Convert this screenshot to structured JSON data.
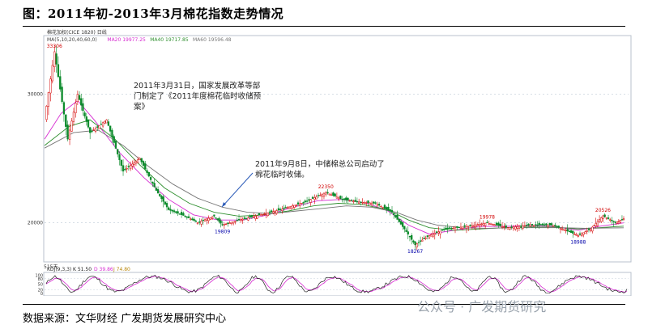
{
  "title": "图：2011年初-2013年3月棉花指数走势情况",
  "source": "数据来源：文华财经  广发期货发展研究中心",
  "watermark": "公众号 · 广发期货研究",
  "chart_data": {
    "type": "line",
    "header_label": "棉花加权(CICE 1820)  日线",
    "ma_legend": [
      {
        "label": "MA(5,10,20,40,60,0)",
        "color": "#444444"
      },
      {
        "label": "MA20 19977.25",
        "color": "#d62ad1"
      },
      {
        "label": "MA40 19717.85",
        "color": "#2f8f2f"
      },
      {
        "label": "MA60 19596.48",
        "color": "#777777"
      }
    ],
    "y_ticks": [
      30000,
      20000
    ],
    "ylim": [
      17000,
      34500
    ],
    "price_path": [
      [
        0,
        28000
      ],
      [
        12,
        33306
      ],
      [
        28,
        26500
      ],
      [
        40,
        30000
      ],
      [
        55,
        27000
      ],
      [
        75,
        28000
      ],
      [
        95,
        24000
      ],
      [
        115,
        25000
      ],
      [
        135,
        22500
      ],
      [
        150,
        21000
      ],
      [
        170,
        20500
      ],
      [
        185,
        20000
      ],
      [
        205,
        20500
      ],
      [
        215,
        19809
      ],
      [
        235,
        20200
      ],
      [
        255,
        20500
      ],
      [
        285,
        21000
      ],
      [
        315,
        21600
      ],
      [
        340,
        22350
      ],
      [
        360,
        21800
      ],
      [
        380,
        21600
      ],
      [
        400,
        21500
      ],
      [
        420,
        20800
      ],
      [
        435,
        19500
      ],
      [
        448,
        18267
      ],
      [
        465,
        19000
      ],
      [
        485,
        19500
      ],
      [
        510,
        19700
      ],
      [
        535,
        19978
      ],
      [
        560,
        19600
      ],
      [
        585,
        19800
      ],
      [
        615,
        19800
      ],
      [
        645,
        18988
      ],
      [
        660,
        19500
      ],
      [
        675,
        20526
      ],
      [
        690,
        20000
      ],
      [
        700,
        20300
      ]
    ],
    "ma_lines": [
      {
        "name": "MA20",
        "color": "#d62ad1",
        "points": [
          [
            0,
            26500
          ],
          [
            20,
            28500
          ],
          [
            40,
            29500
          ],
          [
            60,
            28000
          ],
          [
            90,
            25500
          ],
          [
            120,
            23500
          ],
          [
            150,
            21800
          ],
          [
            180,
            20600
          ],
          [
            210,
            20200
          ],
          [
            240,
            20200
          ],
          [
            270,
            20600
          ],
          [
            300,
            21200
          ],
          [
            330,
            21700
          ],
          [
            360,
            21800
          ],
          [
            390,
            21500
          ],
          [
            415,
            20900
          ],
          [
            440,
            19800
          ],
          [
            465,
            19100
          ],
          [
            495,
            19400
          ],
          [
            525,
            19700
          ],
          [
            555,
            19700
          ],
          [
            585,
            19750
          ],
          [
            615,
            19700
          ],
          [
            645,
            19400
          ],
          [
            670,
            19700
          ],
          [
            700,
            19977
          ]
        ]
      },
      {
        "name": "MA40",
        "color": "#2f8f2f",
        "points": [
          [
            0,
            26000
          ],
          [
            30,
            27500
          ],
          [
            55,
            28000
          ],
          [
            85,
            26500
          ],
          [
            115,
            24500
          ],
          [
            145,
            22700
          ],
          [
            175,
            21500
          ],
          [
            205,
            20800
          ],
          [
            235,
            20500
          ],
          [
            265,
            20600
          ],
          [
            295,
            20900
          ],
          [
            325,
            21300
          ],
          [
            355,
            21500
          ],
          [
            385,
            21400
          ],
          [
            415,
            21000
          ],
          [
            440,
            20200
          ],
          [
            465,
            19600
          ],
          [
            495,
            19400
          ],
          [
            525,
            19500
          ],
          [
            555,
            19600
          ],
          [
            585,
            19650
          ],
          [
            615,
            19650
          ],
          [
            645,
            19500
          ],
          [
            670,
            19600
          ],
          [
            700,
            19718
          ]
        ]
      },
      {
        "name": "MA60",
        "color": "#777777",
        "points": [
          [
            0,
            25800
          ],
          [
            35,
            27000
          ],
          [
            65,
            27200
          ],
          [
            95,
            26000
          ],
          [
            125,
            24400
          ],
          [
            155,
            23000
          ],
          [
            185,
            21900
          ],
          [
            215,
            21200
          ],
          [
            245,
            20800
          ],
          [
            275,
            20700
          ],
          [
            305,
            20900
          ],
          [
            335,
            21100
          ],
          [
            365,
            21300
          ],
          [
            395,
            21200
          ],
          [
            425,
            20800
          ],
          [
            450,
            20200
          ],
          [
            475,
            19800
          ],
          [
            505,
            19600
          ],
          [
            535,
            19550
          ],
          [
            565,
            19600
          ],
          [
            595,
            19600
          ],
          [
            625,
            19600
          ],
          [
            655,
            19550
          ],
          [
            680,
            19580
          ],
          [
            700,
            19596
          ]
        ]
      }
    ],
    "annotations": [
      {
        "lines": [
          "2011年3月31日，国家发展改革等部",
          "门制定了《2011年度棉花临时收储预",
          "案》"
        ]
      },
      {
        "lines": [
          "2011年9月8日，中储棉总公司启动了",
          "棉花临时收储。"
        ]
      }
    ],
    "point_labels": [
      {
        "text": "33306",
        "x": 12,
        "y": 33306,
        "color": "#d00000"
      },
      {
        "text": "19809",
        "x": 215,
        "y": 19809,
        "color": "#0000aa"
      },
      {
        "text": "22350",
        "x": 340,
        "y": 22350,
        "color": "#d00000"
      },
      {
        "text": "18267",
        "x": 448,
        "y": 18267,
        "color": "#0000aa"
      },
      {
        "text": "19978",
        "x": 535,
        "y": 19978,
        "color": "#d00000"
      },
      {
        "text": "18988",
        "x": 645,
        "y": 18988,
        "color": "#0000aa"
      },
      {
        "text": "20526",
        "x": 675,
        "y": 20526,
        "color": "#d00000"
      }
    ],
    "volume_label": "515天",
    "kdj": {
      "label": "KDJ(9,3,3)",
      "values": [
        "K 51.50",
        "D 39.86",
        "J 74.80"
      ],
      "y_ticks": [
        100,
        80,
        50,
        20,
        0
      ],
      "ylim": [
        -10,
        110
      ],
      "k_color": "#222222",
      "d_color": "#d62ad1"
    }
  }
}
